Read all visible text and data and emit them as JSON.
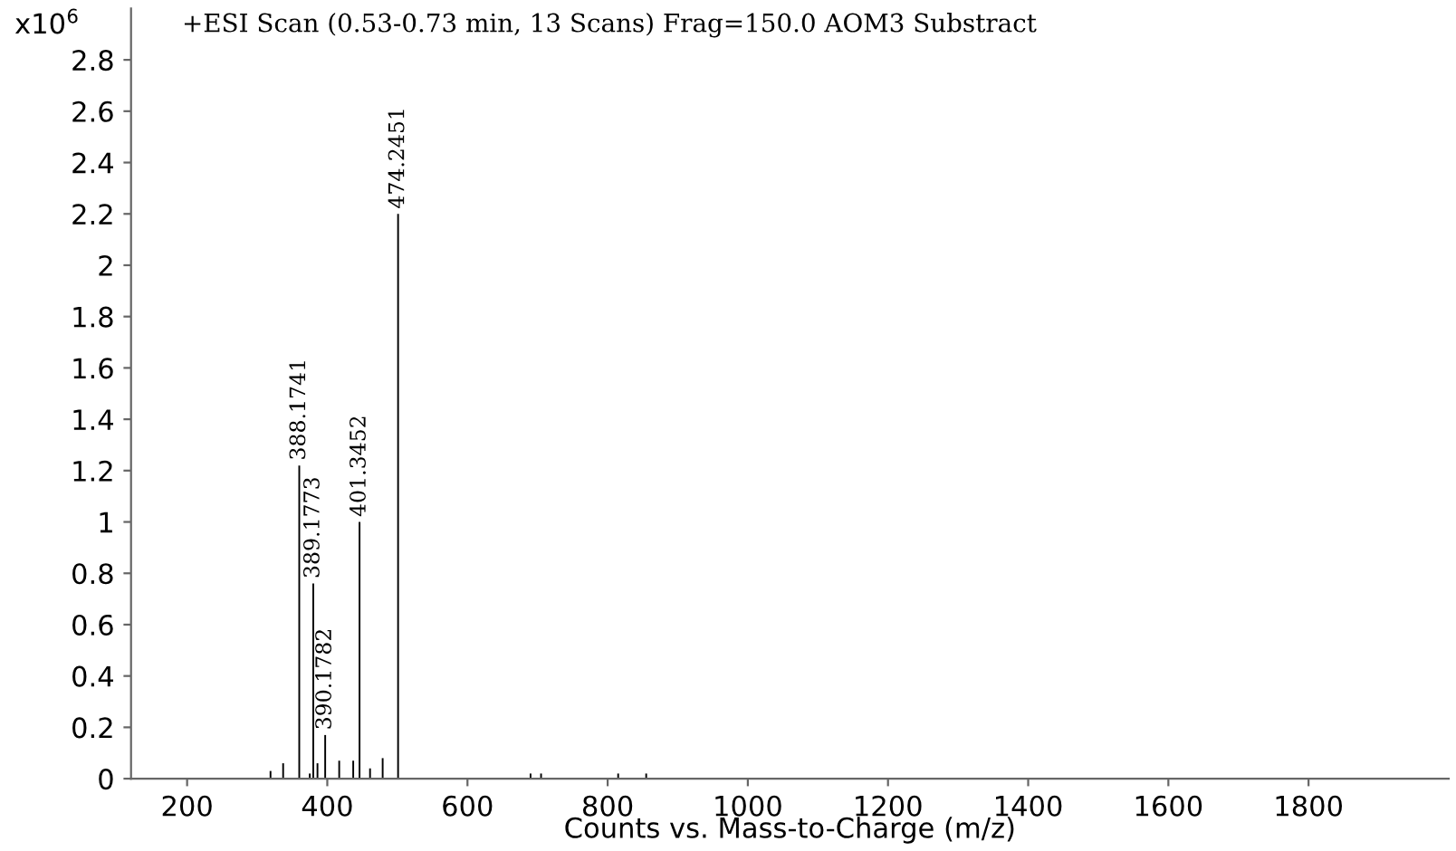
{
  "chart_data": {
    "type": "bar",
    "title": "+ESI Scan (0.53-0.73 min, 13 Scans) Frag=150.0 AOM3 Substract",
    "xlabel": "Counts vs. Mass-to-Charge (m/z)",
    "ylabel": "x10$^{6}$",
    "series": [
      {
        "color": "#000000",
        "x": [
          319,
          337,
          360,
          375,
          380,
          386,
          397,
          417,
          437,
          446,
          461,
          479,
          501,
          690,
          705,
          815,
          855
        ],
        "values": [
          0.03,
          0.06,
          1.22,
          0.02,
          0.76,
          0.06,
          0.17,
          0.07,
          0.07,
          1.0,
          0.04,
          0.08,
          2.2,
          0.02,
          0.02,
          0.02,
          0.02
        ]
      }
    ],
    "annotations": [
      {
        "text": "388.1741",
        "x": 360,
        "y": 1.22
      },
      {
        "text": "389.1773",
        "x": 380,
        "y": 0.76
      },
      {
        "text": "390.1782",
        "x": 397,
        "y": 0.17
      },
      {
        "text": "401.3452",
        "x": 446,
        "y": 1.0
      },
      {
        "text": "474.2451",
        "x": 501,
        "y": 2.2
      }
    ],
    "xlim": [
      120,
      2000
    ],
    "xticks": [
      200,
      400,
      600,
      800,
      1000,
      1200,
      1400,
      1600,
      1800
    ],
    "ylim": [
      0,
      3.0
    ],
    "yticks": [
      0,
      0.2,
      0.4,
      0.6,
      0.8,
      1,
      1.2,
      1.4,
      1.6,
      1.8,
      2,
      2.2,
      2.4,
      2.6,
      2.8
    ],
    "grid": false,
    "legend": false
  }
}
